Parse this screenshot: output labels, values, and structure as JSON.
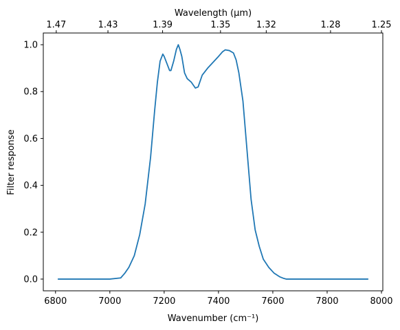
{
  "chart_data": {
    "type": "line",
    "xlabel": "Wavenumber (cm⁻¹)",
    "ylabel": "Filter response",
    "top_xlabel": "Wavelength (μm)",
    "xlim": [
      6755,
      8005
    ],
    "ylim": [
      -0.05,
      1.05
    ],
    "x_ticks": [
      6800,
      7000,
      7200,
      7400,
      7600,
      7800,
      8000
    ],
    "y_ticks": [
      0.0,
      0.2,
      0.4,
      0.6,
      0.8,
      1.0
    ],
    "y_tick_labels": [
      "0.0",
      "0.2",
      "0.4",
      "0.6",
      "0.8",
      "1.0"
    ],
    "top_ticks": [
      {
        "label": "1.47",
        "at": 6802.7
      },
      {
        "label": "1.43",
        "at": 6993.0
      },
      {
        "label": "1.39",
        "at": 7194.2
      },
      {
        "label": "1.35",
        "at": 7407.4
      },
      {
        "label": "1.32",
        "at": 7575.8
      },
      {
        "label": "1.28",
        "at": 7812.5
      },
      {
        "label": "1.25",
        "at": 8000.0
      }
    ],
    "grid": false,
    "series": [
      {
        "color": "#1f77b4",
        "x": [
          6810,
          7000,
          7040,
          7055,
          7070,
          7090,
          7110,
          7130,
          7150,
          7165,
          7175,
          7185,
          7195,
          7200,
          7210,
          7220,
          7225,
          7235,
          7245,
          7252,
          7258,
          7265,
          7275,
          7285,
          7300,
          7315,
          7325,
          7340,
          7360,
          7380,
          7400,
          7415,
          7425,
          7440,
          7455,
          7465,
          7475,
          7490,
          7505,
          7520,
          7535,
          7550,
          7565,
          7585,
          7605,
          7625,
          7640,
          7650,
          7700,
          7800,
          7900,
          7950
        ],
        "y": [
          0.0,
          0.0,
          0.005,
          0.025,
          0.05,
          0.1,
          0.19,
          0.32,
          0.52,
          0.72,
          0.84,
          0.93,
          0.96,
          0.95,
          0.92,
          0.89,
          0.89,
          0.93,
          0.98,
          1.0,
          0.98,
          0.95,
          0.88,
          0.855,
          0.84,
          0.815,
          0.82,
          0.87,
          0.9,
          0.925,
          0.95,
          0.97,
          0.978,
          0.975,
          0.965,
          0.935,
          0.88,
          0.76,
          0.55,
          0.34,
          0.21,
          0.14,
          0.085,
          0.05,
          0.025,
          0.01,
          0.003,
          0.0,
          0.0,
          0.0,
          0.0,
          0.0
        ]
      }
    ]
  }
}
